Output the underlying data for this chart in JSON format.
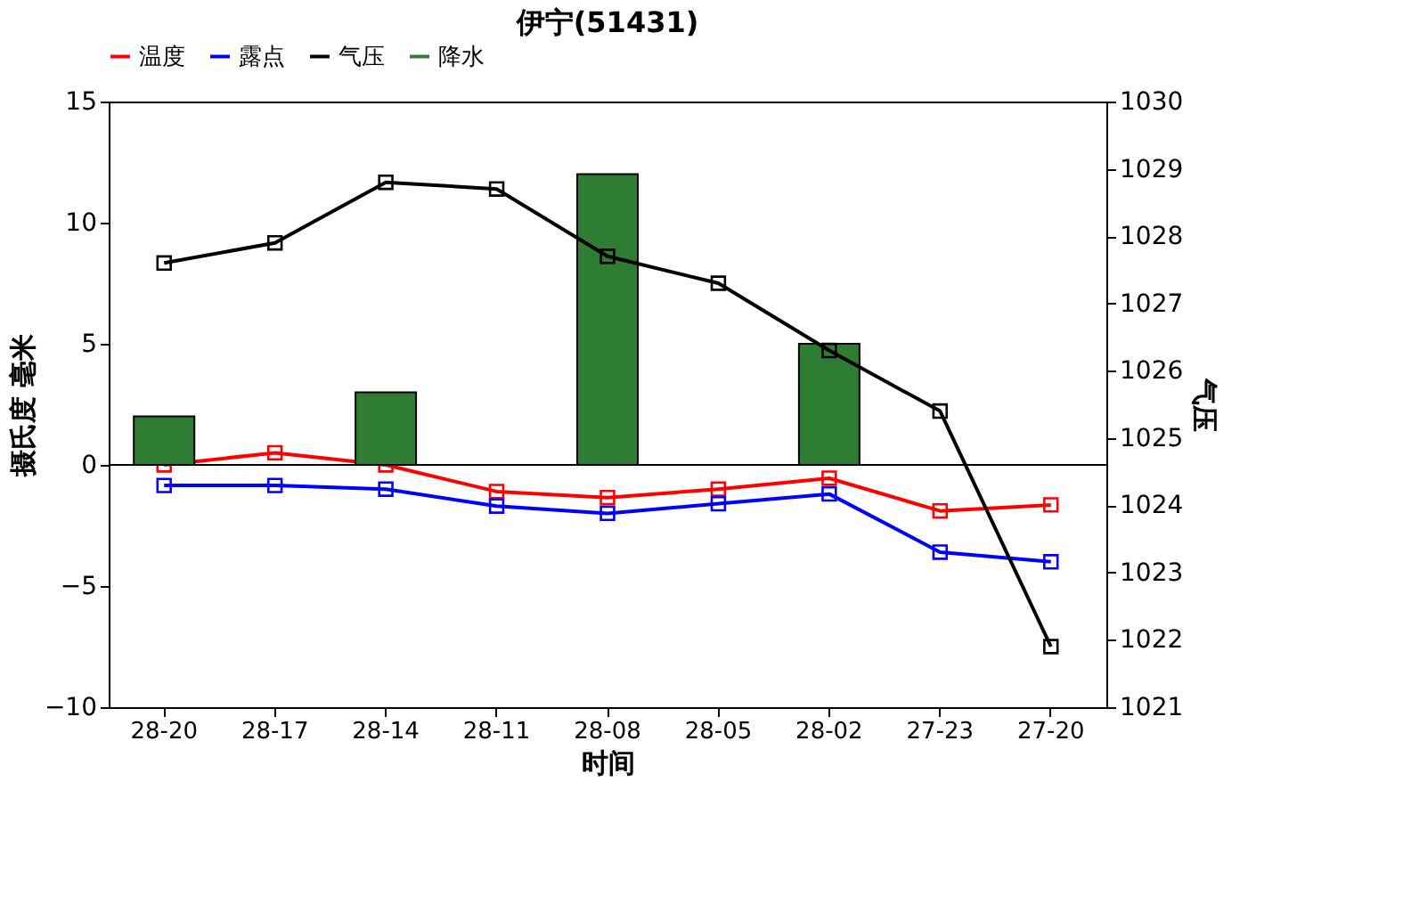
{
  "chart_data": {
    "type": "line",
    "title": "伊宁(51431)",
    "xlabel": "时间",
    "ylabel": "摄氏度   毫米",
    "y2label": "气压",
    "categories": [
      "28-20",
      "28-17",
      "28-14",
      "28-11",
      "28-08",
      "28-05",
      "28-02",
      "27-23",
      "27-20"
    ],
    "series": [
      {
        "name": "温度",
        "color": "#ff0000",
        "values": [
          0.0,
          0.5,
          0.0,
          -1.1,
          -1.35,
          -1.0,
          -0.55,
          -1.9,
          -1.65
        ]
      },
      {
        "name": "露点",
        "color": "#0000ff",
        "values": [
          -0.85,
          -0.85,
          -1.0,
          -1.7,
          -2.0,
          -1.6,
          -1.2,
          -3.6,
          -4.0
        ]
      },
      {
        "name": "气压",
        "color": "#000000",
        "axis": "y2",
        "values": [
          1027.6,
          1027.9,
          1028.8,
          1028.7,
          1027.7,
          1027.3,
          1026.3,
          1025.4,
          1021.9
        ]
      },
      {
        "name": "降水",
        "type": "bar",
        "color": "#2e7d32",
        "values": [
          2,
          null,
          3,
          null,
          12,
          null,
          5,
          null,
          null
        ]
      }
    ],
    "ylim": [
      -10,
      15
    ],
    "yticks": [
      -10,
      -5,
      0,
      5,
      10,
      15
    ],
    "y2lim": [
      1021,
      1030
    ],
    "y2ticks": [
      1021,
      1022,
      1023,
      1024,
      1025,
      1026,
      1027,
      1028,
      1029,
      1030
    ],
    "ref_lines": [
      {
        "axis": "y",
        "value": 0,
        "color": "#000000"
      }
    ],
    "marker": "square",
    "grid": false,
    "legend": "top left"
  }
}
